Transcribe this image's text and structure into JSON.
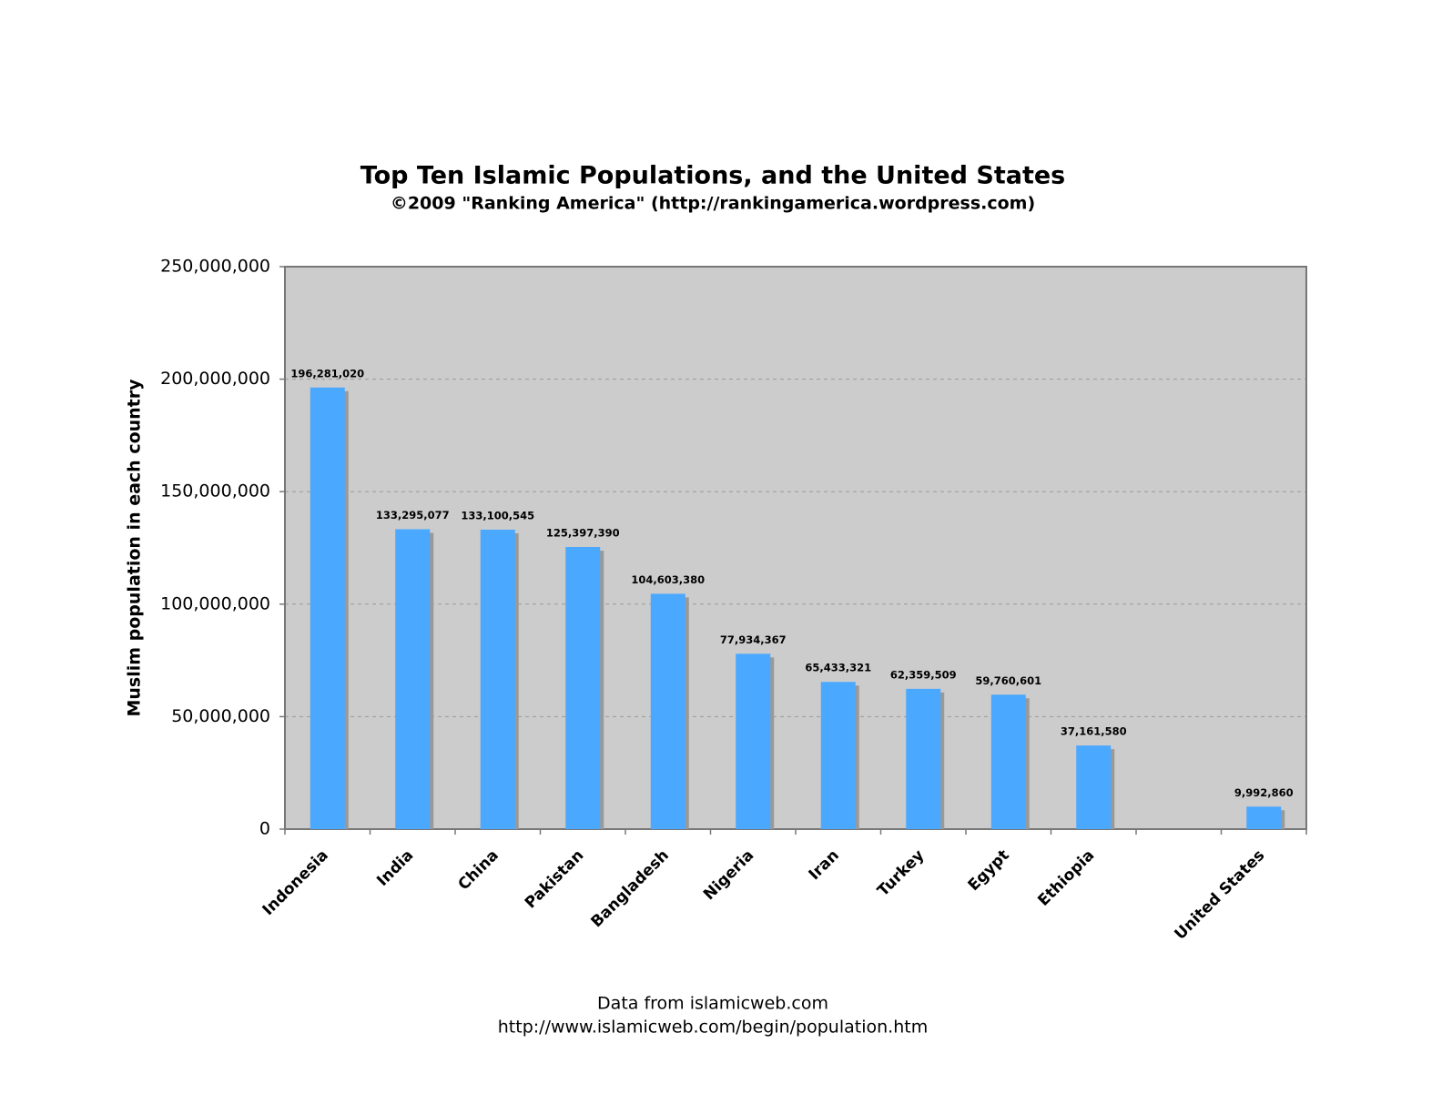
{
  "chart_data": {
    "type": "bar",
    "title": "Top Ten Islamic Populations, and the United States",
    "subtitle": "©2009 \"Ranking America\" (http://rankingamerica.wordpress.com)",
    "y_label": "Muslim population in each country",
    "footer": [
      "Data from islamicweb.com",
      "http://www.islamicweb.com/begin/population.htm"
    ],
    "categories": [
      "Indonesia",
      "India",
      "China",
      "Pakistan",
      "Bangladesh",
      "Nigeria",
      "Iran",
      "Turkey",
      "Egypt",
      "Ethiopia",
      null,
      "United States"
    ],
    "values": [
      196281020,
      133295077,
      133100545,
      125397390,
      104603380,
      77934367,
      65433321,
      62359509,
      59760601,
      37161580,
      null,
      9992860
    ],
    "value_labels": [
      "196,281,020",
      "133,295,077",
      "133,100,545",
      "125,397,390",
      "104,603,380",
      "77,934,367",
      "65,433,321",
      "62,359,509",
      "59,760,601",
      "37,161,580",
      null,
      "9,992,860"
    ],
    "color": "#4aa8ff",
    "ylim": [
      0,
      250000000
    ],
    "yticks": [
      0,
      {
        "value": 50000000,
        "label": "50,000,000"
      },
      {
        "value": 100000000,
        "label": "100,000,000"
      },
      {
        "value": 150000000,
        "label": "150,000,000"
      },
      {
        "value": 200000000,
        "label": "200,000,000"
      },
      {
        "value": 250000000,
        "label": "250,000,000"
      }
    ],
    "grid": true
  }
}
